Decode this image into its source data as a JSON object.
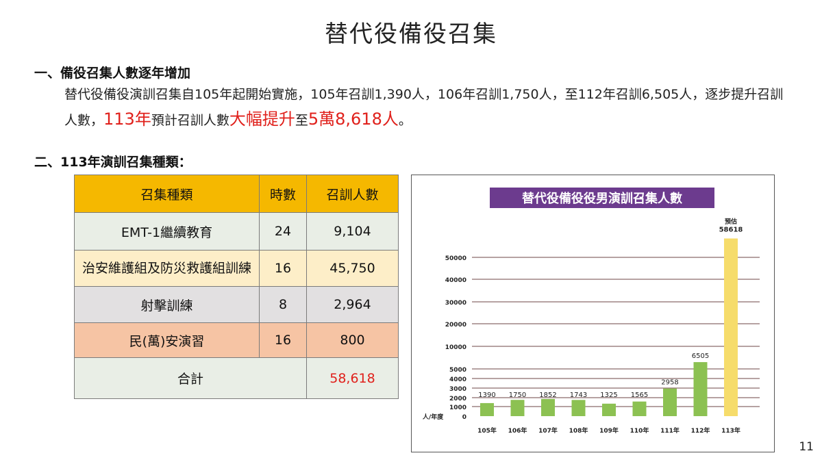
{
  "page": {
    "title": "替代役備役召集",
    "page_number": "11"
  },
  "section1": {
    "heading": "一、備役召集人數逐年增加",
    "text_a": "替代役備役演訓召集自105年起開始實施，105年召訓1,390人，106年召訓1,750人，至112年召訓6,505人，逐步提升召訓人數，",
    "text_b": "113年",
    "text_c": "預計召訓人數",
    "text_d": "大幅提升",
    "text_e": "至",
    "text_f": "5萬8,618人",
    "text_g": "。"
  },
  "section2": {
    "heading": "二、113年演訓召集種類："
  },
  "table": {
    "headers": [
      "召集種類",
      "時數",
      "召訓人數"
    ],
    "rows": [
      {
        "name": "EMT-1繼續教育",
        "hours": "24",
        "count": "9,104"
      },
      {
        "name": "治安維護組及防災救護組訓練",
        "hours": "16",
        "count": "45,750"
      },
      {
        "name": "射擊訓練",
        "hours": "8",
        "count": "2,964"
      },
      {
        "name": "民(萬)安演習",
        "hours": "16",
        "count": "800"
      }
    ],
    "total_label": "合計",
    "total_value": "58,618",
    "colors": {
      "header": "#f5b800",
      "total_value": "#e0201b"
    }
  },
  "chart_data": {
    "type": "bar",
    "title": "替代役備役役男演訓召集人數",
    "categories": [
      "105年",
      "106年",
      "107年",
      "108年",
      "109年",
      "110年",
      "111年",
      "112年",
      "113年"
    ],
    "values": [
      1390,
      1750,
      1852,
      1743,
      1325,
      1565,
      2958,
      6505,
      58618
    ],
    "data_labels": [
      "1390",
      "1750",
      "1852",
      "1743",
      "1325",
      "1565",
      "2958",
      "6505",
      "58618"
    ],
    "estimate_label": "預估",
    "ylabel": "人/年度",
    "xlabel": "",
    "y_ticks": [
      0,
      1000,
      2000,
      3000,
      4000,
      5000,
      10000,
      20000,
      30000,
      40000,
      50000
    ],
    "y_tick_labels": [
      "0",
      "1000",
      "2000",
      "3000",
      "4000",
      "5000",
      "10000",
      "20000",
      "30000",
      "40000",
      "50000"
    ],
    "axis_scale": "piecewise linear (0-5000 compressed, 5000-50000 expanded)",
    "grid": true,
    "legend": "none",
    "colors": {
      "bar": "#8cc152",
      "estimate_bar": "#f6dc6b",
      "title_bg": "#6c3b8e",
      "title_text": "#ffffff",
      "grid": "#8a6a6a"
    }
  }
}
